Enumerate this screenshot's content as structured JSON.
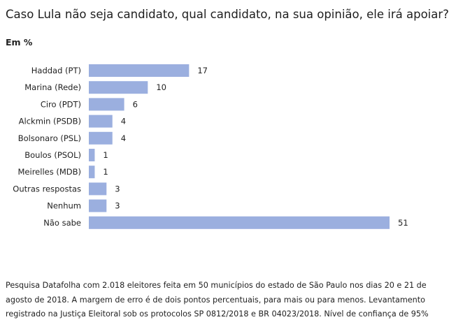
{
  "header": {
    "title": "Caso Lula não seja candidato, qual candidato, na sua opinião, ele irá apoiar?",
    "unit": "Em %"
  },
  "chart_data": {
    "type": "bar",
    "orientation": "horizontal",
    "title": "Caso Lula não seja candidato, qual candidato, na sua opinião, ele irá apoiar?",
    "subtitle": "Em %",
    "categories": [
      "Haddad (PT)",
      "Marina (Rede)",
      "Ciro (PDT)",
      "Alckmin (PSDB)",
      "Bolsonaro (PSL)",
      "Boulos (PSOL)",
      "Meirelles (MDB)",
      "Outras respostas",
      "Nenhum",
      "Não sabe"
    ],
    "values": [
      17,
      10,
      6,
      4,
      4,
      1,
      1,
      3,
      3,
      51
    ],
    "data_labels": [
      "17",
      "10",
      "6",
      "4",
      "4",
      "1",
      "1",
      "3",
      "3",
      "51"
    ],
    "xlim": [
      0,
      51
    ],
    "grid": false,
    "bar_color": "#9bafdf"
  },
  "footer": {
    "note": "Pesquisa Datafolha com 2.018 eleitores feita em 50 municípios do estado de São Paulo nos dias 20 e 21 de agosto de 2018. A margem de erro é de dois pontos percentuais, para mais ou para menos. Levantamento registrado na Justiça Eleitoral sob os protocolos SP 0812/2018 e BR 04023/2018. Nível de confiança de 95%"
  }
}
